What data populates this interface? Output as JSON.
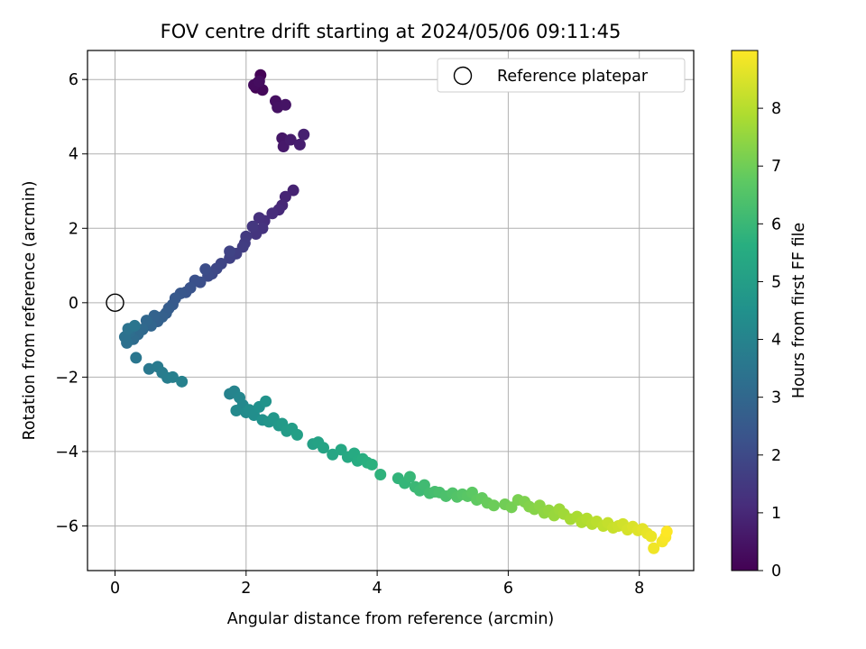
{
  "chart_data": {
    "type": "scatter",
    "title": "FOV centre drift starting at 2024/05/06 09:11:45",
    "xlabel": "Angular distance from reference (arcmin)",
    "ylabel": "Rotation from reference (arcmin)",
    "xlim": [
      -0.42,
      8.83
    ],
    "ylim": [
      -7.2,
      6.78
    ],
    "xticks": [
      0,
      2,
      4,
      6,
      8
    ],
    "yticks": [
      -6,
      -4,
      -2,
      0,
      2,
      4,
      6
    ],
    "grid": true,
    "colormap": "viridis",
    "colorbar": {
      "label": "Hours from first FF file",
      "range": [
        0,
        9.0
      ],
      "ticks": [
        0,
        1,
        2,
        3,
        4,
        5,
        6,
        7,
        8
      ]
    },
    "legend": {
      "placement": "top-right",
      "entries": [
        "Reference platepar"
      ]
    },
    "reference_point": {
      "x": 0,
      "y": 0
    },
    "series": [
      {
        "points": [
          [
            2.15,
            5.78
          ],
          [
            2.22,
            6.12
          ],
          [
            2.18,
            5.92
          ],
          [
            2.25,
            5.72
          ],
          [
            2.12,
            5.85
          ],
          [
            2.2,
            5.95
          ],
          [
            2.45,
            5.42
          ],
          [
            2.48,
            5.25
          ],
          [
            2.6,
            5.32
          ],
          [
            2.55,
            4.42
          ],
          [
            2.57,
            4.2
          ],
          [
            2.68,
            4.38
          ],
          [
            2.82,
            4.25
          ],
          [
            2.88,
            4.52
          ],
          [
            2.72,
            3.02
          ],
          [
            2.6,
            2.85
          ],
          [
            2.55,
            2.62
          ],
          [
            2.5,
            2.5
          ],
          [
            2.4,
            2.4
          ],
          [
            2.28,
            2.2
          ],
          [
            2.2,
            2.28
          ],
          [
            2.25,
            2.0
          ],
          [
            2.15,
            1.85
          ],
          [
            2.1,
            2.05
          ],
          [
            2.0,
            1.78
          ],
          [
            1.98,
            1.6
          ],
          [
            1.95,
            1.5
          ],
          [
            1.85,
            1.32
          ],
          [
            1.75,
            1.2
          ],
          [
            1.75,
            1.38
          ],
          [
            1.62,
            1.05
          ],
          [
            1.55,
            0.92
          ],
          [
            1.48,
            0.78
          ],
          [
            1.42,
            0.72
          ],
          [
            1.38,
            0.9
          ],
          [
            1.3,
            0.55
          ],
          [
            1.22,
            0.6
          ],
          [
            1.15,
            0.4
          ],
          [
            1.08,
            0.28
          ],
          [
            1.0,
            0.25
          ],
          [
            0.92,
            0.12
          ],
          [
            0.88,
            -0.05
          ],
          [
            0.82,
            -0.15
          ],
          [
            0.78,
            -0.28
          ],
          [
            0.72,
            -0.38
          ],
          [
            0.65,
            -0.5
          ],
          [
            0.6,
            -0.35
          ],
          [
            0.55,
            -0.62
          ],
          [
            0.48,
            -0.48
          ],
          [
            0.42,
            -0.72
          ],
          [
            0.35,
            -0.85
          ],
          [
            0.28,
            -0.98
          ],
          [
            0.22,
            -0.78
          ],
          [
            0.18,
            -1.08
          ],
          [
            0.15,
            -0.92
          ],
          [
            0.2,
            -0.7
          ],
          [
            0.3,
            -0.62
          ],
          [
            0.32,
            -1.48
          ],
          [
            0.52,
            -1.78
          ],
          [
            0.65,
            -1.72
          ],
          [
            0.72,
            -1.88
          ],
          [
            0.8,
            -2.02
          ],
          [
            0.88,
            -2.0
          ],
          [
            1.02,
            -2.12
          ],
          [
            1.75,
            -2.45
          ],
          [
            1.82,
            -2.38
          ],
          [
            1.9,
            -2.55
          ],
          [
            1.95,
            -2.75
          ],
          [
            1.85,
            -2.9
          ],
          [
            2.0,
            -2.95
          ],
          [
            2.05,
            -2.88
          ],
          [
            2.12,
            -3.02
          ],
          [
            2.2,
            -2.8
          ],
          [
            2.25,
            -3.15
          ],
          [
            2.3,
            -2.65
          ],
          [
            2.35,
            -3.2
          ],
          [
            2.42,
            -3.1
          ],
          [
            2.5,
            -3.3
          ],
          [
            2.55,
            -3.25
          ],
          [
            2.62,
            -3.45
          ],
          [
            2.7,
            -3.38
          ],
          [
            2.78,
            -3.55
          ],
          [
            3.02,
            -3.8
          ],
          [
            3.1,
            -3.75
          ],
          [
            3.18,
            -3.9
          ],
          [
            3.32,
            -4.08
          ],
          [
            3.45,
            -3.95
          ],
          [
            3.55,
            -4.15
          ],
          [
            3.65,
            -4.05
          ],
          [
            3.7,
            -4.25
          ],
          [
            3.78,
            -4.2
          ],
          [
            3.85,
            -4.3
          ],
          [
            3.92,
            -4.35
          ],
          [
            4.05,
            -4.62
          ],
          [
            4.32,
            -4.72
          ],
          [
            4.42,
            -4.85
          ],
          [
            4.5,
            -4.68
          ],
          [
            4.58,
            -4.95
          ],
          [
            4.65,
            -5.05
          ],
          [
            4.72,
            -4.9
          ],
          [
            4.8,
            -5.12
          ],
          [
            4.88,
            -5.08
          ],
          [
            4.95,
            -5.1
          ],
          [
            5.05,
            -5.2
          ],
          [
            5.15,
            -5.12
          ],
          [
            5.22,
            -5.22
          ],
          [
            5.3,
            -5.15
          ],
          [
            5.38,
            -5.2
          ],
          [
            5.45,
            -5.1
          ],
          [
            5.52,
            -5.3
          ],
          [
            5.6,
            -5.25
          ],
          [
            5.68,
            -5.38
          ],
          [
            5.78,
            -5.45
          ],
          [
            5.95,
            -5.42
          ],
          [
            6.05,
            -5.5
          ],
          [
            6.15,
            -5.3
          ],
          [
            6.25,
            -5.35
          ],
          [
            6.32,
            -5.48
          ],
          [
            6.4,
            -5.55
          ],
          [
            6.48,
            -5.45
          ],
          [
            6.55,
            -5.65
          ],
          [
            6.62,
            -5.58
          ],
          [
            6.7,
            -5.72
          ],
          [
            6.78,
            -5.55
          ],
          [
            6.85,
            -5.68
          ],
          [
            6.95,
            -5.82
          ],
          [
            7.05,
            -5.75
          ],
          [
            7.12,
            -5.9
          ],
          [
            7.2,
            -5.8
          ],
          [
            7.28,
            -5.95
          ],
          [
            7.35,
            -5.88
          ],
          [
            7.45,
            -6.0
          ],
          [
            7.52,
            -5.92
          ],
          [
            7.6,
            -6.05
          ],
          [
            7.68,
            -6.0
          ],
          [
            7.75,
            -5.95
          ],
          [
            7.82,
            -6.1
          ],
          [
            7.9,
            -6.02
          ],
          [
            7.98,
            -6.12
          ],
          [
            8.05,
            -6.08
          ],
          [
            8.12,
            -6.2
          ],
          [
            8.18,
            -6.28
          ],
          [
            8.22,
            -6.6
          ],
          [
            8.35,
            -6.42
          ],
          [
            8.4,
            -6.3
          ],
          [
            8.42,
            -6.15
          ]
        ]
      }
    ]
  }
}
